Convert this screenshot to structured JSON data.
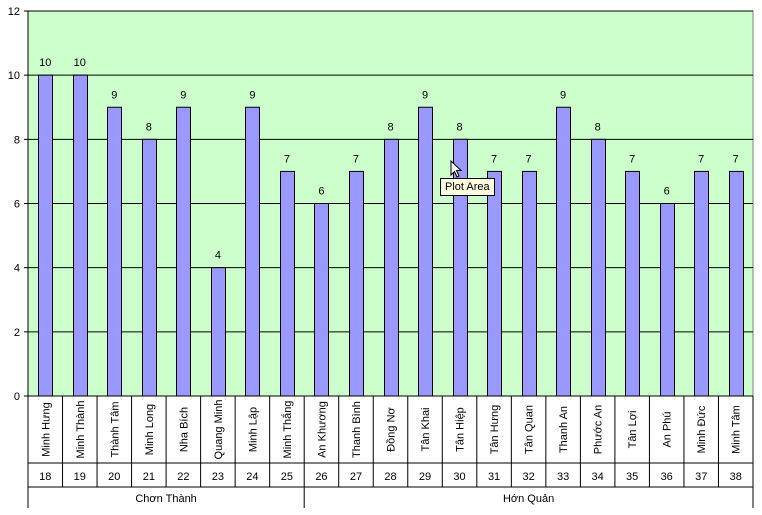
{
  "chart_data": {
    "type": "bar",
    "ylim": [
      0,
      12
    ],
    "y_ticks": [
      0,
      2,
      4,
      6,
      8,
      10,
      12
    ],
    "grid": true,
    "categories": [
      {
        "name": "Minh Hưng",
        "code": "18"
      },
      {
        "name": "Minh Thành",
        "code": "19"
      },
      {
        "name": "Thành Tâm",
        "code": "20"
      },
      {
        "name": "Minh Long",
        "code": "21"
      },
      {
        "name": "Nha Bích",
        "code": "22"
      },
      {
        "name": "Quang Minh",
        "code": "23"
      },
      {
        "name": "Minh Lập",
        "code": "24"
      },
      {
        "name": "Minh Thắng",
        "code": "25"
      },
      {
        "name": "An Khương",
        "code": "26"
      },
      {
        "name": "Thanh Bình",
        "code": "27"
      },
      {
        "name": "Đồng Nơ",
        "code": "28"
      },
      {
        "name": "Tân Khai",
        "code": "29"
      },
      {
        "name": "Tân Hiệp",
        "code": "30"
      },
      {
        "name": "Tân Hưng",
        "code": "31"
      },
      {
        "name": "Tân Quan",
        "code": "32"
      },
      {
        "name": "Thanh An",
        "code": "33"
      },
      {
        "name": "Phước An",
        "code": "34"
      },
      {
        "name": "Tân Lợi",
        "code": "35"
      },
      {
        "name": "An Phú",
        "code": "36"
      },
      {
        "name": "Minh Đức",
        "code": "37"
      },
      {
        "name": "Minh Tâm",
        "code": "38"
      }
    ],
    "values": [
      10,
      10,
      9,
      8,
      9,
      4,
      9,
      7,
      6,
      7,
      8,
      9,
      8,
      7,
      7,
      9,
      8,
      7,
      6,
      7,
      7
    ],
    "groups": [
      {
        "label": "Chơn Thành",
        "count": 8
      },
      {
        "label": "Hớn Quản",
        "count": 13
      }
    ],
    "colors": {
      "plot_bg": "#ccffcc",
      "bar_fill": "#9999ff",
      "bar_stroke": "#000000"
    }
  },
  "tooltip": {
    "text": "Plot Area"
  }
}
